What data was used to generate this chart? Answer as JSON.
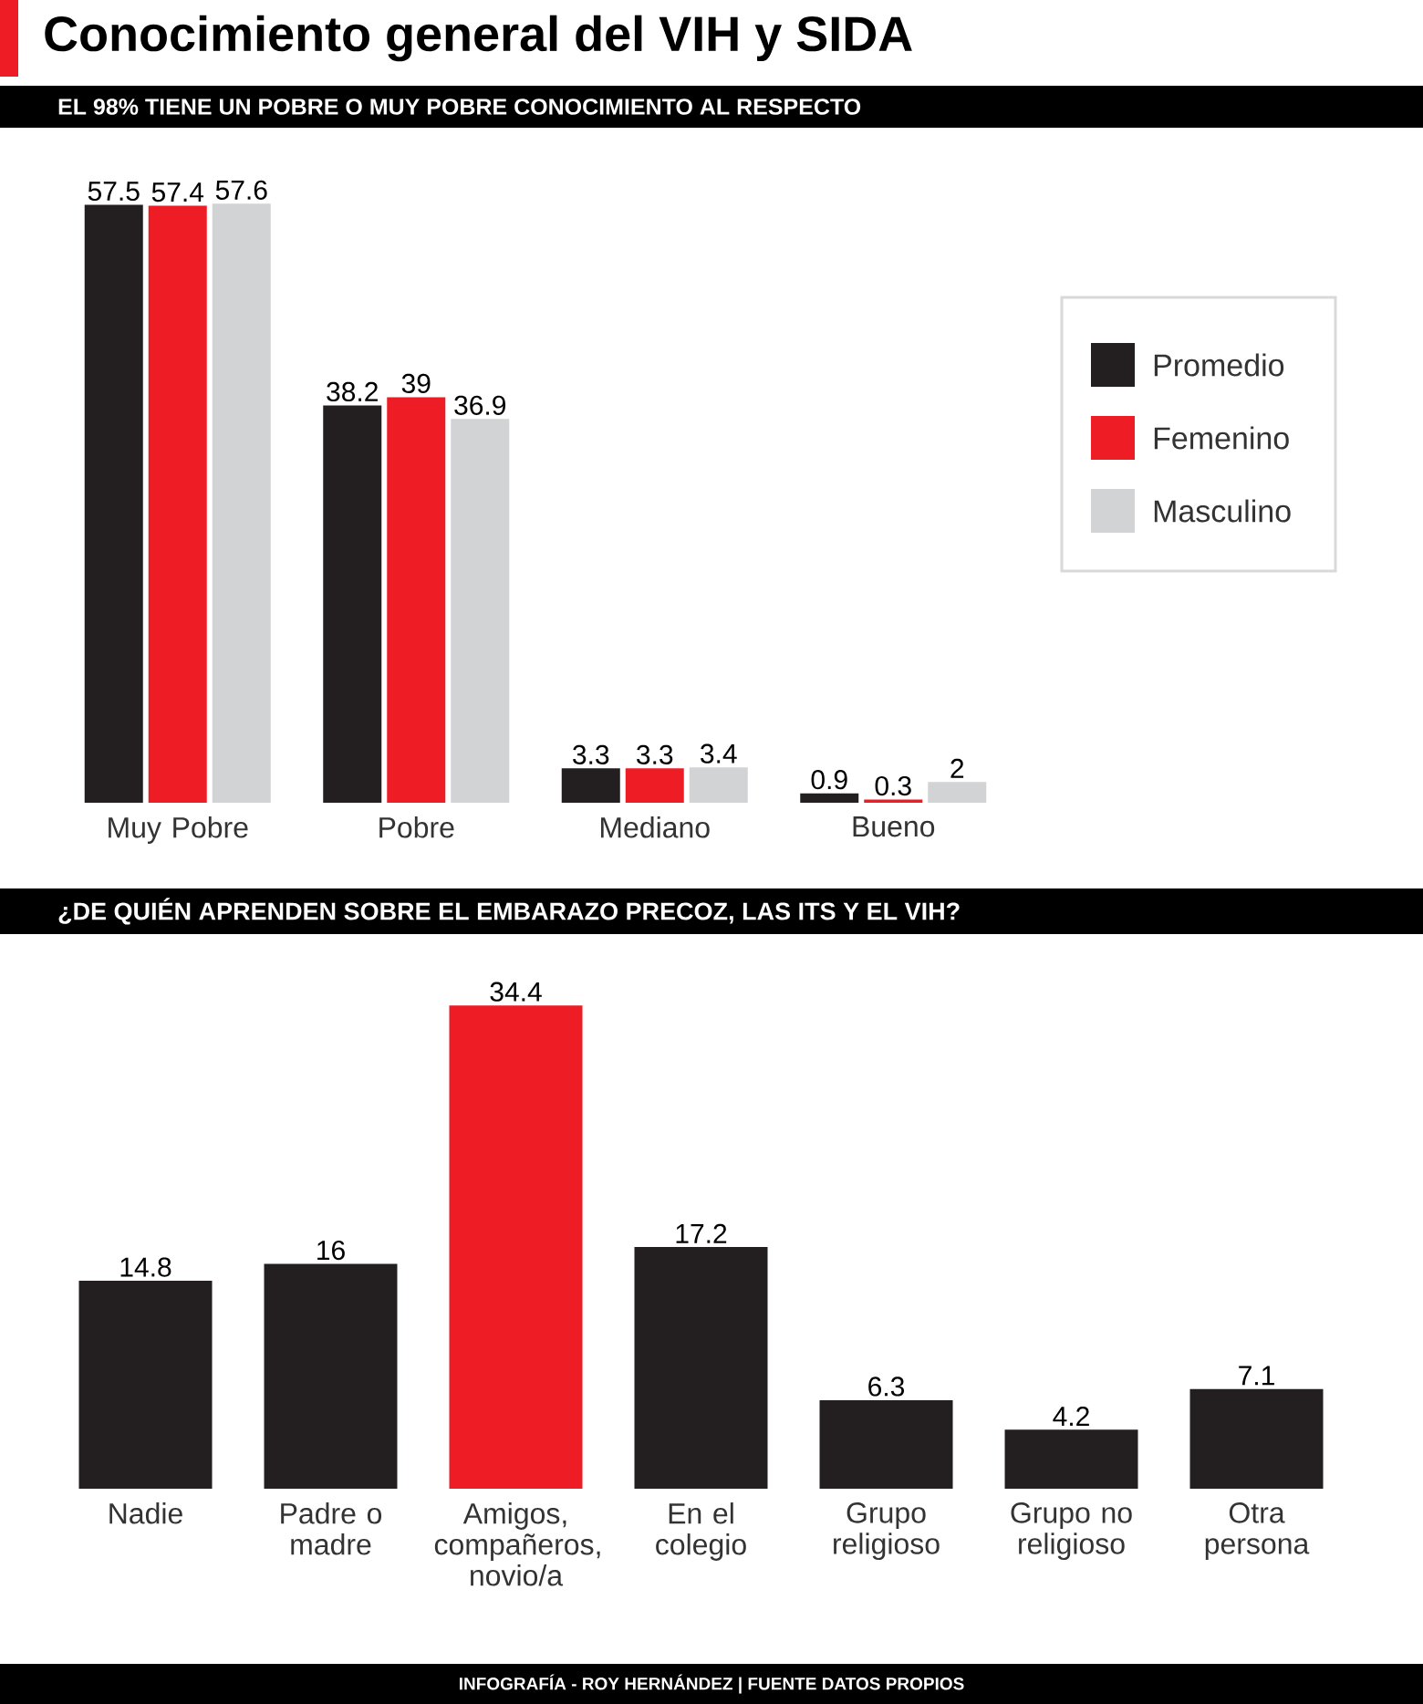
{
  "chart_data": [
    {
      "type": "bar",
      "title": "Conocimiento general del VIH y SIDA",
      "subtitle": "EL 98% TIENE UN POBRE O MUY POBRE CONOCIMIENTO AL RESPECTO",
      "categories": [
        "Muy Pobre",
        "Pobre",
        "Mediano",
        "Bueno"
      ],
      "series": [
        {
          "name": "Promedio",
          "color": "#231f20",
          "values": [
            57.5,
            38.2,
            3.3,
            0.9
          ]
        },
        {
          "name": "Femenino",
          "color": "#ee1c25",
          "values": [
            57.4,
            39,
            3.3,
            0.3
          ]
        },
        {
          "name": "Masculino",
          "color": "#d1d3d4",
          "values": [
            57.6,
            36.9,
            3.4,
            2
          ]
        }
      ],
      "data_labels": true,
      "legend": "right"
    },
    {
      "type": "bar",
      "title": "¿DE QUIÉN APRENDEN SOBRE EL EMBARAZO PRECOZ, LAS ITS Y EL VIH?",
      "categories": [
        "Nadie",
        "Padre o madre",
        "Amigos, compañeros, novio/a",
        "En el colegio",
        "Grupo religioso",
        "Grupo no religioso",
        "Otra persona"
      ],
      "values": [
        14.8,
        16,
        34.4,
        17.2,
        6.3,
        4.2,
        7.1
      ],
      "colors": [
        "#231f20",
        "#231f20",
        "#ee1c25",
        "#231f20",
        "#231f20",
        "#231f20",
        "#231f20"
      ],
      "data_labels": true,
      "annotations": [
        "INFOGRAFÍA - ROY HERNÁNDEZ | FUENTE DATOS PROPIOS"
      ]
    }
  ]
}
